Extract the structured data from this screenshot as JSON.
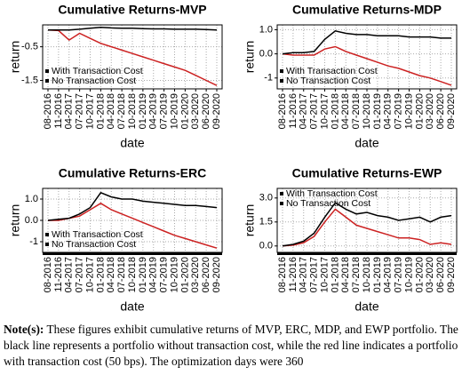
{
  "chart_data": [
    {
      "type": "line",
      "title": "Cumulative Returns-MVP",
      "xlabel": "date",
      "ylabel": "return",
      "categories": [
        "08-2016",
        "11-2016",
        "04-2017",
        "07-2017",
        "10-2017",
        "01-2018",
        "04-2018",
        "07-2018",
        "10-2018",
        "01-2019",
        "04-2019",
        "07-2019",
        "10-2019",
        "01-2020",
        "03-2020",
        "06-2020",
        "09-2020"
      ],
      "series": [
        {
          "name": "With Transaction Cost",
          "color": "#cc2222",
          "values": [
            0,
            -0.02,
            -0.3,
            -0.1,
            -0.25,
            -0.4,
            -0.5,
            -0.6,
            -0.7,
            -0.8,
            -0.9,
            -1.0,
            -1.1,
            -1.2,
            -1.35,
            -1.5,
            -1.65
          ]
        },
        {
          "name": "No Transaction Cost",
          "color": "#000000",
          "values": [
            0,
            0,
            0,
            0.02,
            0.05,
            0.08,
            0.06,
            0.05,
            0.05,
            0.04,
            0.03,
            0.03,
            0.02,
            0.02,
            0.02,
            0.01,
            0
          ]
        }
      ],
      "ylim": [
        -1.75,
        0.15
      ],
      "yticks": [
        -1.5,
        -0.5
      ],
      "grid": true,
      "legend": "bottomleft"
    },
    {
      "type": "line",
      "title": "Cumulative Returns-MDP",
      "xlabel": "date",
      "ylabel": "return",
      "categories": [
        "08-2016",
        "11-2016",
        "04-2017",
        "07-2017",
        "10-2017",
        "01-2018",
        "04-2018",
        "07-2018",
        "10-2018",
        "01-2019",
        "04-2019",
        "07-2019",
        "10-2019",
        "01-2020",
        "03-2020",
        "06-2020",
        "09-2020"
      ],
      "series": [
        {
          "name": "With Transaction Cost",
          "color": "#cc2222",
          "values": [
            0,
            -0.05,
            -0.05,
            -0.05,
            0.2,
            0.3,
            0.1,
            -0.05,
            -0.2,
            -0.35,
            -0.5,
            -0.6,
            -0.75,
            -0.9,
            -1.0,
            -1.15,
            -1.3
          ]
        },
        {
          "name": "No Transaction Cost",
          "color": "#000000",
          "values": [
            0,
            0.05,
            0.05,
            0.1,
            0.6,
            0.95,
            0.85,
            0.8,
            0.8,
            0.75,
            0.75,
            0.75,
            0.7,
            0.7,
            0.7,
            0.65,
            0.65
          ]
        }
      ],
      "ylim": [
        -1.45,
        1.2
      ],
      "yticks": [
        -1.0,
        {
          "value": 0,
          "label": "0.0"
        },
        {
          "value": 1,
          "label": "1.0"
        }
      ],
      "grid": true,
      "legend": "bottomleft"
    },
    {
      "type": "line",
      "title": "Cumulative Returns-ERC",
      "xlabel": "date",
      "ylabel": "return",
      "categories": [
        "08-2016",
        "11-2016",
        "04-2017",
        "07-2017",
        "10-2017",
        "01-2018",
        "04-2018",
        "07-2018",
        "10-2018",
        "01-2019",
        "04-2019",
        "07-2019",
        "10-2019",
        "01-2020",
        "03-2020",
        "06-2020",
        "09-2020"
      ],
      "series": [
        {
          "name": "With Transaction Cost",
          "color": "#cc2222",
          "values": [
            0,
            0,
            0.1,
            0.2,
            0.5,
            0.8,
            0.5,
            0.3,
            0.1,
            -0.1,
            -0.3,
            -0.5,
            -0.7,
            -0.85,
            -1.0,
            -1.15,
            -1.3
          ]
        },
        {
          "name": "No Transaction Cost",
          "color": "#000000",
          "values": [
            0,
            0.05,
            0.1,
            0.3,
            0.6,
            1.3,
            1.1,
            1.0,
            1.0,
            0.9,
            0.85,
            0.8,
            0.75,
            0.7,
            0.7,
            0.65,
            0.6
          ]
        }
      ],
      "ylim": [
        -1.5,
        1.5
      ],
      "yticks": [
        -1.0,
        {
          "value": 0,
          "label": "0.0"
        },
        {
          "value": 1,
          "label": "1.0"
        }
      ],
      "grid": true,
      "legend": "bottomleft"
    },
    {
      "type": "line",
      "title": "Cumulative Returns-EWP",
      "xlabel": "date",
      "ylabel": "return",
      "categories": [
        "08-2016",
        "11-2016",
        "04-2017",
        "07-2017",
        "10-2017",
        "01-2018",
        "04-2018",
        "07-2018",
        "10-2018",
        "01-2019",
        "04-2019",
        "07-2019",
        "10-2019",
        "01-2020",
        "03-2020",
        "06-2020",
        "09-2020"
      ],
      "series": [
        {
          "name": "With Transaction Cost",
          "color": "#cc2222",
          "values": [
            0,
            0.05,
            0.2,
            0.6,
            1.5,
            2.3,
            1.8,
            1.3,
            1.1,
            0.9,
            0.7,
            0.5,
            0.5,
            0.4,
            0.1,
            0.2,
            0.1
          ]
        },
        {
          "name": "No Transaction Cost",
          "color": "#000000",
          "values": [
            0,
            0.1,
            0.3,
            0.8,
            1.8,
            2.7,
            2.3,
            2.0,
            2.1,
            1.9,
            1.8,
            1.6,
            1.7,
            1.8,
            1.5,
            1.8,
            1.9
          ]
        }
      ],
      "ylim": [
        -0.4,
        3.6
      ],
      "yticks": [
        {
          "value": 0,
          "label": "0.0"
        },
        1.5,
        {
          "value": 3,
          "label": "3.0"
        }
      ],
      "grid": true,
      "legend": "topleft"
    }
  ],
  "caption": {
    "label": "Note(s):",
    "text": "These figures exhibit cumulative returns of MVP, ERC, MDP, and EWP portfolio. The black line represents a portfolio without transaction cost, while the red line indicates a portfolio with transaction cost (50 bps). The optimization days were 360"
  }
}
